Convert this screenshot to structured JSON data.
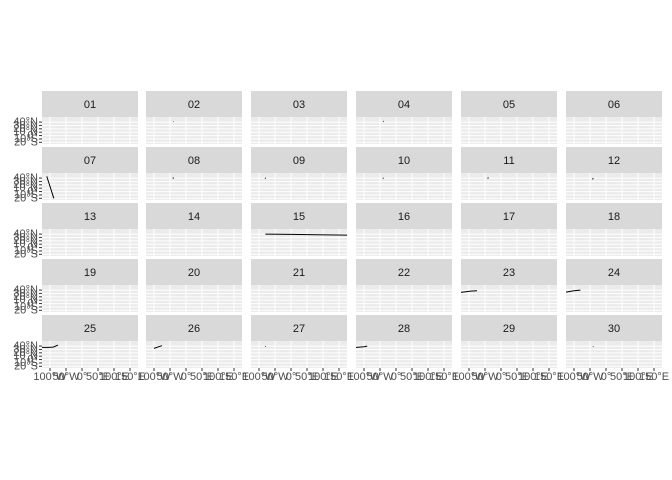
{
  "chart_data": {
    "type": "line",
    "facet_layout": {
      "rows": 5,
      "cols": 6
    },
    "background": "#ffffff",
    "strip_fill": "#d9d9d9",
    "panel_fill": "#ebebeb",
    "grid_color": "#ffffff",
    "line_color": "#000000",
    "text_color": "#1a1a1a",
    "axis_text_color": "#4d4d4d",
    "title": "",
    "xlabel": "",
    "ylabel": "",
    "xlim": [
      -125,
      175
    ],
    "ylim": [
      -25,
      55
    ],
    "y_ticks": [
      {
        "value": 40,
        "label": "40°N"
      },
      {
        "value": 30,
        "label": "30°N"
      },
      {
        "value": 20,
        "label": "20°N"
      },
      {
        "value": 10,
        "label": "10°N"
      },
      {
        "value": 0,
        "label": "0°"
      },
      {
        "value": -10,
        "label": "10°S"
      },
      {
        "value": -20,
        "label": "20°S"
      }
    ],
    "x_ticks": [
      {
        "value": -100,
        "label": "100°W"
      },
      {
        "value": -50,
        "label": "50°W"
      },
      {
        "value": 0,
        "label": "0°"
      },
      {
        "value": 50,
        "label": "50°E"
      },
      {
        "value": 100,
        "label": "100°E"
      },
      {
        "value": 150,
        "label": "150°E"
      }
    ],
    "panels": [
      {
        "label": "01",
        "series": []
      },
      {
        "label": "02",
        "series": [
          [
            [
              -40,
              42
            ],
            [
              -39,
              41
            ]
          ]
        ]
      },
      {
        "label": "03",
        "series": []
      },
      {
        "label": "04",
        "series": [
          [
            [
              -40,
              43
            ],
            [
              -39,
              41
            ]
          ]
        ]
      },
      {
        "label": "05",
        "series": []
      },
      {
        "label": "06",
        "series": []
      },
      {
        "label": "07",
        "series": [
          [
            [
              -110,
              45
            ],
            [
              -88,
              -20
            ]
          ]
        ]
      },
      {
        "label": "08",
        "series": [
          [
            [
              -40,
              42
            ],
            [
              -40,
              38
            ]
          ]
        ]
      },
      {
        "label": "09",
        "series": [
          [
            [
              -80,
              41
            ],
            [
              -80,
              38
            ]
          ]
        ]
      },
      {
        "label": "10",
        "series": [
          [
            [
              -40,
              41
            ],
            [
              -40,
              38
            ]
          ]
        ]
      },
      {
        "label": "11",
        "series": [
          [
            [
              -40,
              42
            ],
            [
              -41,
              38
            ]
          ]
        ]
      },
      {
        "label": "12",
        "series": [
          [
            [
              -40,
              40
            ],
            [
              -42,
              36
            ]
          ]
        ]
      },
      {
        "label": "13",
        "series": []
      },
      {
        "label": "14",
        "series": []
      },
      {
        "label": "15",
        "series": [
          [
            [
              -80,
              40
            ],
            [
              0,
              39
            ],
            [
              80,
              38
            ],
            [
              175,
              37
            ]
          ]
        ]
      },
      {
        "label": "16",
        "series": []
      },
      {
        "label": "17",
        "series": []
      },
      {
        "label": "18",
        "series": []
      },
      {
        "label": "19",
        "series": []
      },
      {
        "label": "20",
        "series": []
      },
      {
        "label": "21",
        "series": []
      },
      {
        "label": "22",
        "series": []
      },
      {
        "label": "23",
        "series": [
          [
            [
              -125,
              33
            ],
            [
              -95,
              37
            ],
            [
              -75,
              38
            ]
          ]
        ]
      },
      {
        "label": "24",
        "series": [
          [
            [
              -125,
              34
            ],
            [
              -100,
              38
            ],
            [
              -80,
              40
            ]
          ]
        ]
      },
      {
        "label": "25",
        "series": [
          [
            [
              -125,
              36
            ],
            [
              -105,
              36
            ],
            [
              -90,
              37
            ],
            [
              -75,
              43
            ]
          ]
        ]
      },
      {
        "label": "26",
        "series": [
          [
            [
              -100,
              33
            ],
            [
              -85,
              38
            ],
            [
              -75,
              41
            ]
          ]
        ]
      },
      {
        "label": "27",
        "series": [
          [
            [
              -80,
              40
            ],
            [
              -79,
              38
            ]
          ]
        ]
      },
      {
        "label": "28",
        "series": [
          [
            [
              -125,
              36
            ],
            [
              -100,
              38
            ],
            [
              -90,
              40
            ]
          ]
        ]
      },
      {
        "label": "29",
        "series": []
      },
      {
        "label": "30",
        "series": [
          [
            [
              -40,
              40
            ],
            [
              -40,
              38
            ]
          ]
        ]
      }
    ]
  }
}
